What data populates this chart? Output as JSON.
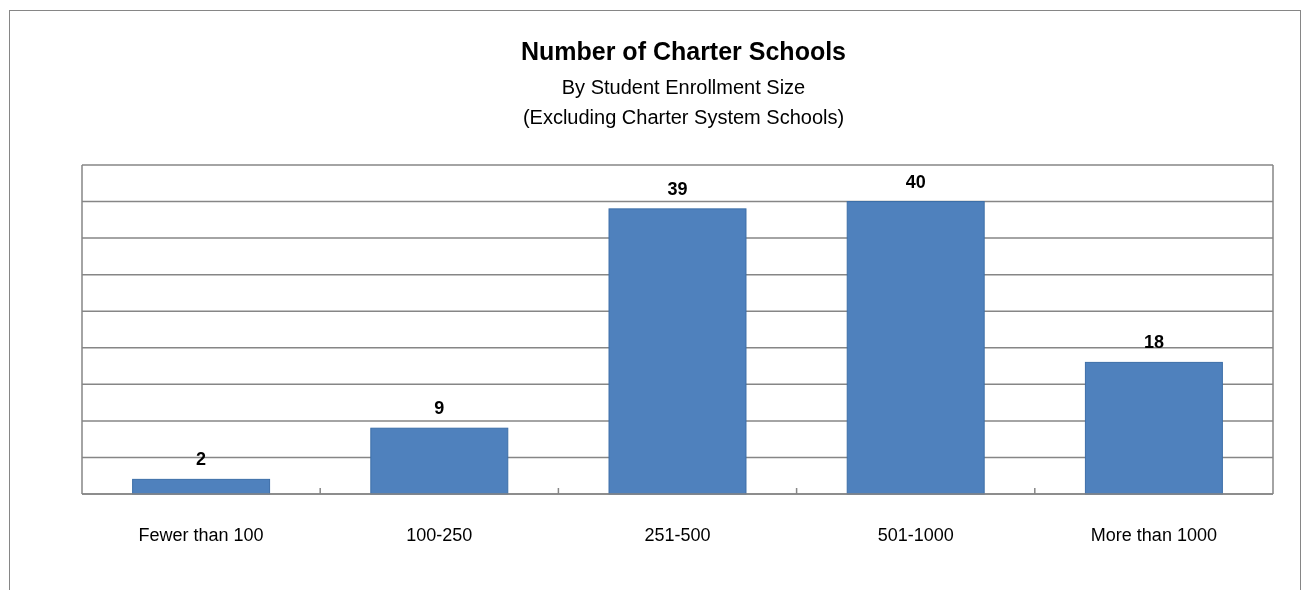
{
  "chart_data": {
    "type": "bar",
    "title": "Number of Charter Schools",
    "subtitle": "By Student Enrollment Size\n(Excluding Charter System Schools)",
    "categories": [
      "Fewer than 100",
      "100-250",
      "251-500",
      "501-1000",
      "More than 1000"
    ],
    "values": [
      2,
      9,
      39,
      40,
      18
    ],
    "color": "#4f81bd",
    "ylim": [
      0,
      45
    ],
    "yticks": [
      {
        "value": 0,
        "label": null
      },
      {
        "value": 5,
        "label": null
      },
      {
        "value": 10,
        "label": null
      },
      {
        "value": 15,
        "label": null
      },
      {
        "value": 20,
        "label": null
      },
      {
        "value": 25,
        "label": null
      },
      {
        "value": 30,
        "label": null
      },
      {
        "value": 35,
        "label": null
      },
      {
        "value": 40,
        "label": null
      },
      {
        "value": 45,
        "label": null
      }
    ],
    "grid": "y",
    "tick_labels": "x",
    "data_labels": true
  }
}
